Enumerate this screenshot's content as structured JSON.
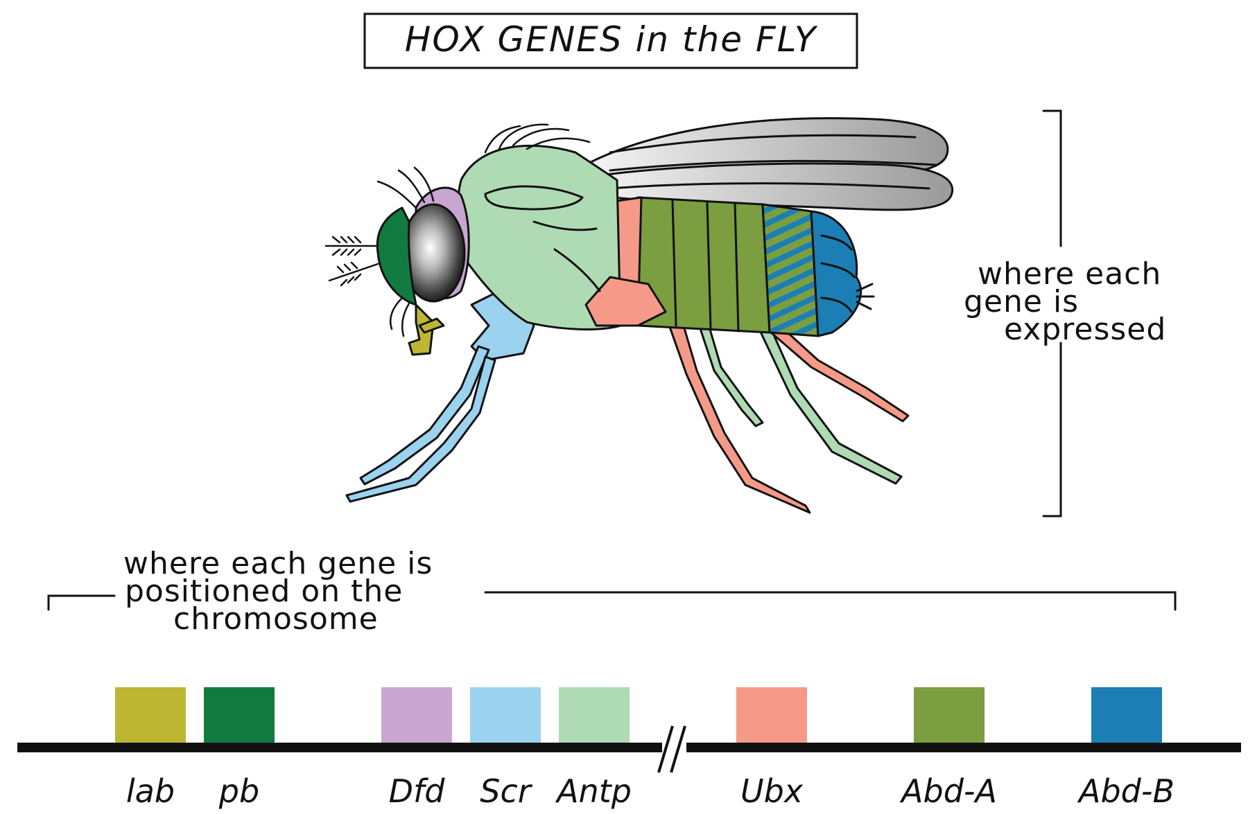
{
  "title": "HOX GENES in the FLY",
  "expression_note": [
    "where each",
    "gene is",
    "expressed"
  ],
  "position_note": [
    "where each gene is",
    "positioned on the",
    "chromosome"
  ],
  "genes": [
    {
      "name": "lab",
      "color": "#bdb733"
    },
    {
      "name": "pb",
      "color": "#117a3f"
    },
    {
      "name": "Dfd",
      "color": "#c9a6d0"
    },
    {
      "name": "Scr",
      "color": "#9ad2ef"
    },
    {
      "name": "Antp",
      "color": "#aedbb4"
    },
    {
      "name": "Ubx",
      "color": "#f59a88"
    },
    {
      "name": "Abd-A",
      "color": "#7b9e40"
    },
    {
      "name": "Abd-B",
      "color": "#1b7fb6"
    }
  ],
  "colors": {
    "eye_ring": "#c9a6d0",
    "head_front": "#117a3f",
    "mouthparts": "#bdb733",
    "thorax": "#aedbb4",
    "front_legs": "#9ad2ef",
    "hind_legs_and_segment": "#f59a88",
    "abdomen_mid": "#7b9e40",
    "abdomen_tail": "#1b7fb6",
    "wing": "#cfcfcf",
    "outline": "#111111"
  }
}
